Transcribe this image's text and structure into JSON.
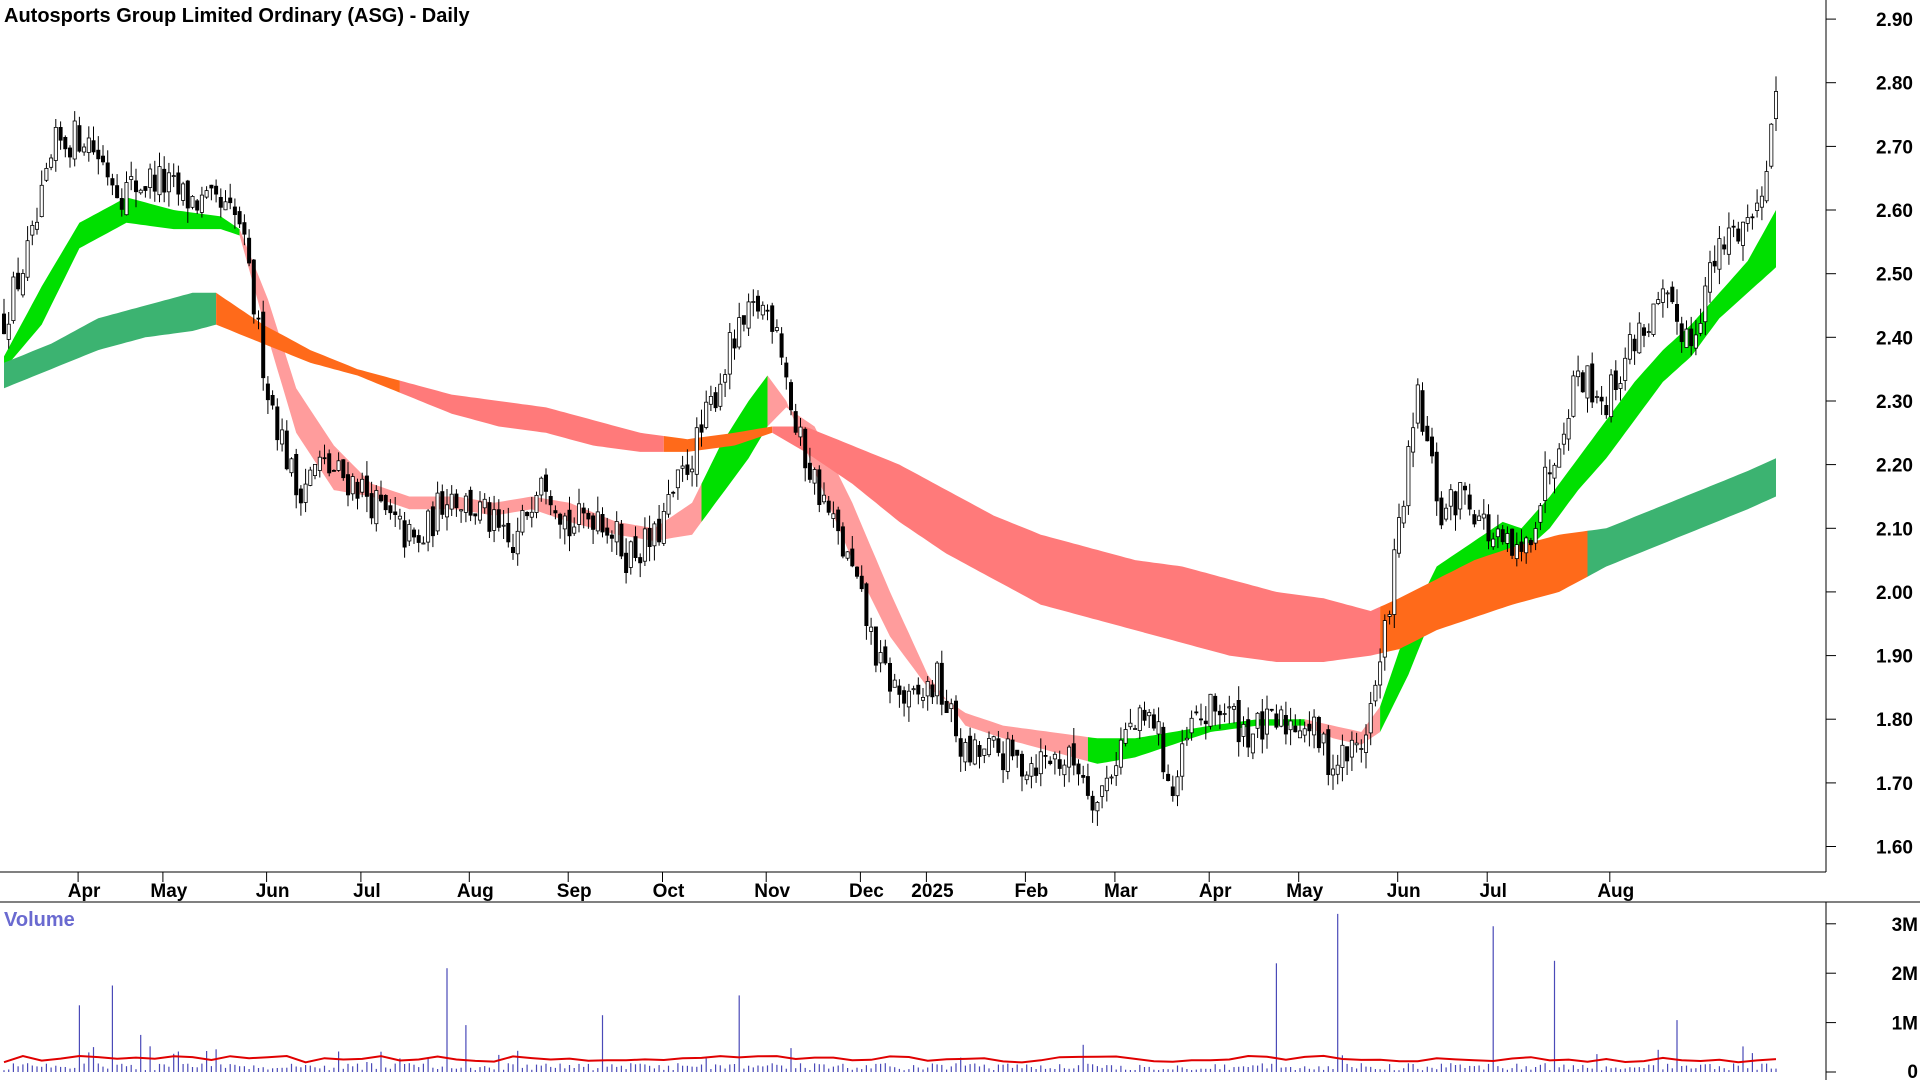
{
  "chart_data": [
    {
      "type": "candlestick",
      "title": "Autosports Group Limited Ordinary (ASG) - Daily",
      "ylim": [
        1.56,
        2.93
      ],
      "y_ticks": [
        "1.60",
        "1.70",
        "1.80",
        "1.90",
        "2.00",
        "2.10",
        "2.20",
        "2.30",
        "2.40",
        "2.50",
        "2.60",
        "2.70",
        "2.80",
        "2.90"
      ],
      "x_ticks": [
        "Apr",
        "May",
        "Jun",
        "Jul",
        "Aug",
        "Sep",
        "Oct",
        "Nov",
        "Dec",
        "2025",
        "Feb",
        "Mar",
        "Apr",
        "May",
        "Jun",
        "Jul",
        "Aug"
      ],
      "close_path": [
        [
          0,
          2.43
        ],
        [
          6,
          2.55
        ],
        [
          11,
          2.7
        ],
        [
          17,
          2.72
        ],
        [
          25,
          2.63
        ],
        [
          32,
          2.65
        ],
        [
          38,
          2.62
        ],
        [
          46,
          2.6
        ],
        [
          50,
          2.58
        ],
        [
          56,
          2.32
        ],
        [
          62,
          2.16
        ],
        [
          67,
          2.2
        ],
        [
          75,
          2.17
        ],
        [
          82,
          2.11
        ],
        [
          88,
          2.07
        ],
        [
          94,
          2.16
        ],
        [
          102,
          2.12
        ],
        [
          108,
          2.06
        ],
        [
          114,
          2.2
        ],
        [
          120,
          2.1
        ],
        [
          126,
          2.13
        ],
        [
          132,
          2.06
        ],
        [
          138,
          2.08
        ],
        [
          142,
          2.15
        ],
        [
          148,
          2.25
        ],
        [
          154,
          2.38
        ],
        [
          160,
          2.45
        ],
        [
          164,
          2.43
        ],
        [
          168,
          2.25
        ],
        [
          174,
          2.14
        ],
        [
          180,
          2.03
        ],
        [
          186,
          1.88
        ],
        [
          192,
          1.82
        ],
        [
          198,
          1.86
        ],
        [
          204,
          1.74
        ],
        [
          210,
          1.75
        ],
        [
          216,
          1.73
        ],
        [
          222,
          1.74
        ],
        [
          228,
          1.73
        ],
        [
          232,
          1.67
        ],
        [
          238,
          1.78
        ],
        [
          244,
          1.8
        ],
        [
          248,
          1.68
        ],
        [
          252,
          1.79
        ],
        [
          258,
          1.82
        ],
        [
          264,
          1.78
        ],
        [
          270,
          1.79
        ],
        [
          276,
          1.8
        ],
        [
          282,
          1.73
        ],
        [
          288,
          1.76
        ],
        [
          292,
          1.88
        ],
        [
          296,
          2.1
        ],
        [
          300,
          2.3
        ],
        [
          305,
          2.12
        ],
        [
          310,
          2.16
        ],
        [
          316,
          2.08
        ],
        [
          322,
          2.05
        ],
        [
          328,
          2.2
        ],
        [
          334,
          2.35
        ],
        [
          340,
          2.3
        ],
        [
          346,
          2.4
        ],
        [
          352,
          2.45
        ],
        [
          358,
          2.4
        ],
        [
          362,
          2.5
        ],
        [
          366,
          2.56
        ],
        [
          372,
          2.6
        ],
        [
          376,
          2.78
        ]
      ],
      "bands": [
        {
          "name": "short-term ribbon",
          "upper": [
            [
              0,
              2.37
            ],
            [
              8,
              2.48
            ],
            [
              16,
              2.58
            ],
            [
              26,
              2.62
            ],
            [
              36,
              2.6
            ],
            [
              46,
              2.59
            ],
            [
              50,
              2.57
            ],
            [
              56,
              2.46
            ],
            [
              62,
              2.32
            ],
            [
              70,
              2.23
            ],
            [
              78,
              2.17
            ],
            [
              86,
              2.15
            ],
            [
              96,
              2.15
            ],
            [
              104,
              2.14
            ],
            [
              112,
              2.15
            ],
            [
              120,
              2.14
            ],
            [
              130,
              2.11
            ],
            [
              138,
              2.1
            ],
            [
              146,
              2.14
            ],
            [
              152,
              2.23
            ],
            [
              158,
              2.3
            ],
            [
              162,
              2.34
            ],
            [
              166,
              2.3
            ],
            [
              172,
              2.19
            ],
            [
              180,
              2.05
            ],
            [
              188,
              1.93
            ],
            [
              196,
              1.85
            ],
            [
              204,
              1.81
            ],
            [
              212,
              1.79
            ],
            [
              222,
              1.78
            ],
            [
              232,
              1.77
            ],
            [
              240,
              1.77
            ],
            [
              248,
              1.78
            ],
            [
              256,
              1.79
            ],
            [
              266,
              1.8
            ],
            [
              276,
              1.8
            ],
            [
              282,
              1.79
            ],
            [
              288,
              1.78
            ],
            [
              292,
              1.82
            ],
            [
              298,
              1.95
            ],
            [
              304,
              2.04
            ],
            [
              312,
              2.08
            ],
            [
              318,
              2.11
            ],
            [
              322,
              2.1
            ],
            [
              328,
              2.15
            ],
            [
              334,
              2.21
            ],
            [
              340,
              2.27
            ],
            [
              346,
              2.33
            ],
            [
              352,
              2.38
            ],
            [
              358,
              2.42
            ],
            [
              364,
              2.47
            ],
            [
              370,
              2.52
            ],
            [
              376,
              2.6
            ]
          ],
          "lower": [
            [
              0,
              2.35
            ],
            [
              8,
              2.42
            ],
            [
              16,
              2.54
            ],
            [
              26,
              2.58
            ],
            [
              36,
              2.57
            ],
            [
              46,
              2.57
            ],
            [
              50,
              2.56
            ],
            [
              56,
              2.4
            ],
            [
              62,
              2.25
            ],
            [
              70,
              2.16
            ],
            [
              78,
              2.15
            ],
            [
              86,
              2.13
            ],
            [
              96,
              2.13
            ],
            [
              104,
              2.12
            ],
            [
              112,
              2.13
            ],
            [
              120,
              2.11
            ],
            [
              130,
              2.09
            ],
            [
              138,
              2.08
            ],
            [
              146,
              2.09
            ],
            [
              152,
              2.15
            ],
            [
              158,
              2.21
            ],
            [
              162,
              2.26
            ],
            [
              166,
              2.29
            ],
            [
              172,
              2.26
            ],
            [
              180,
              2.14
            ],
            [
              188,
              2.0
            ],
            [
              196,
              1.87
            ],
            [
              204,
              1.79
            ],
            [
              212,
              1.77
            ],
            [
              222,
              1.75
            ],
            [
              232,
              1.73
            ],
            [
              240,
              1.74
            ],
            [
              248,
              1.76
            ],
            [
              256,
              1.78
            ],
            [
              266,
              1.79
            ],
            [
              276,
              1.79
            ],
            [
              282,
              1.77
            ],
            [
              288,
              1.76
            ],
            [
              292,
              1.78
            ],
            [
              298,
              1.87
            ],
            [
              304,
              1.98
            ],
            [
              312,
              2.02
            ],
            [
              318,
              2.05
            ],
            [
              322,
              2.06
            ],
            [
              328,
              2.1
            ],
            [
              334,
              2.16
            ],
            [
              340,
              2.21
            ],
            [
              346,
              2.27
            ],
            [
              352,
              2.33
            ],
            [
              358,
              2.37
            ],
            [
              364,
              2.43
            ],
            [
              370,
              2.47
            ],
            [
              376,
              2.51
            ]
          ],
          "segments": [
            {
              "from": 0,
              "to": 50,
              "color": "#00e000"
            },
            {
              "from": 50,
              "to": 148,
              "color": "#ff9c9c"
            },
            {
              "from": 148,
              "to": 162,
              "color": "#00e000"
            },
            {
              "from": 162,
              "to": 230,
              "color": "#ff9c9c"
            },
            {
              "from": 230,
              "to": 276,
              "color": "#00e000"
            },
            {
              "from": 276,
              "to": 292,
              "color": "#ff9c9c"
            },
            {
              "from": 292,
              "to": 376,
              "color": "#00e000"
            }
          ]
        },
        {
          "name": "long-term ribbon",
          "upper": [
            [
              0,
              2.36
            ],
            [
              10,
              2.39
            ],
            [
              20,
              2.43
            ],
            [
              30,
              2.45
            ],
            [
              40,
              2.47
            ],
            [
              45,
              2.47
            ],
            [
              55,
              2.42
            ],
            [
              65,
              2.38
            ],
            [
              75,
              2.35
            ],
            [
              85,
              2.33
            ],
            [
              95,
              2.31
            ],
            [
              105,
              2.3
            ],
            [
              115,
              2.29
            ],
            [
              125,
              2.27
            ],
            [
              135,
              2.25
            ],
            [
              145,
              2.24
            ],
            [
              155,
              2.25
            ],
            [
              163,
              2.26
            ],
            [
              170,
              2.26
            ],
            [
              180,
              2.23
            ],
            [
              190,
              2.2
            ],
            [
              200,
              2.16
            ],
            [
              210,
              2.12
            ],
            [
              220,
              2.09
            ],
            [
              230,
              2.07
            ],
            [
              240,
              2.05
            ],
            [
              250,
              2.04
            ],
            [
              260,
              2.02
            ],
            [
              270,
              2.0
            ],
            [
              280,
              1.99
            ],
            [
              290,
              1.97
            ],
            [
              296,
              1.99
            ],
            [
              304,
              2.02
            ],
            [
              312,
              2.05
            ],
            [
              320,
              2.07
            ],
            [
              330,
              2.09
            ],
            [
              340,
              2.1
            ],
            [
              350,
              2.13
            ],
            [
              360,
              2.16
            ],
            [
              370,
              2.19
            ],
            [
              376,
              2.21
            ]
          ],
          "lower": [
            [
              0,
              2.32
            ],
            [
              10,
              2.35
            ],
            [
              20,
              2.38
            ],
            [
              30,
              2.4
            ],
            [
              40,
              2.41
            ],
            [
              45,
              2.42
            ],
            [
              55,
              2.39
            ],
            [
              65,
              2.36
            ],
            [
              75,
              2.34
            ],
            [
              85,
              2.31
            ],
            [
              95,
              2.28
            ],
            [
              105,
              2.26
            ],
            [
              115,
              2.25
            ],
            [
              125,
              2.23
            ],
            [
              135,
              2.22
            ],
            [
              145,
              2.22
            ],
            [
              155,
              2.23
            ],
            [
              163,
              2.25
            ],
            [
              170,
              2.22
            ],
            [
              180,
              2.17
            ],
            [
              190,
              2.11
            ],
            [
              200,
              2.06
            ],
            [
              210,
              2.02
            ],
            [
              220,
              1.98
            ],
            [
              230,
              1.96
            ],
            [
              240,
              1.94
            ],
            [
              250,
              1.92
            ],
            [
              260,
              1.9
            ],
            [
              270,
              1.89
            ],
            [
              280,
              1.89
            ],
            [
              290,
              1.9
            ],
            [
              296,
              1.91
            ],
            [
              304,
              1.94
            ],
            [
              312,
              1.96
            ],
            [
              320,
              1.98
            ],
            [
              330,
              2.0
            ],
            [
              340,
              2.04
            ],
            [
              350,
              2.07
            ],
            [
              360,
              2.1
            ],
            [
              370,
              2.13
            ],
            [
              376,
              2.15
            ]
          ],
          "segments": [
            {
              "from": 0,
              "to": 45,
              "color": "#3cb371"
            },
            {
              "from": 45,
              "to": 84,
              "color": "#ff6a1a"
            },
            {
              "from": 84,
              "to": 140,
              "color": "#ff7a7a"
            },
            {
              "from": 140,
              "to": 163,
              "color": "#ff6a1a"
            },
            {
              "from": 163,
              "to": 292,
              "color": "#ff7a7a"
            },
            {
              "from": 292,
              "to": 336,
              "color": "#ff6a1a"
            },
            {
              "from": 336,
              "to": 376,
              "color": "#3cb371"
            }
          ]
        }
      ]
    },
    {
      "type": "bar",
      "title": "Volume",
      "ylim": [
        0,
        3400000
      ],
      "y_ticks": [
        "0",
        "1M",
        "2M",
        "3M"
      ],
      "baseline": 120000,
      "moving_average": 260000,
      "spikes": [
        [
          16,
          1350000
        ],
        [
          23,
          1750000
        ],
        [
          29,
          750000
        ],
        [
          94,
          2100000
        ],
        [
          98,
          950000
        ],
        [
          127,
          1150000
        ],
        [
          156,
          1550000
        ],
        [
          270,
          2200000
        ],
        [
          283,
          3200000
        ],
        [
          316,
          2950000
        ],
        [
          329,
          2250000
        ],
        [
          355,
          1050000
        ]
      ]
    }
  ],
  "colors": {
    "candle": "#000000",
    "axis": "#000000",
    "volume_bar": "#4a4ab8",
    "volume_ma": "#e00000",
    "grid_tick": "#000000"
  }
}
